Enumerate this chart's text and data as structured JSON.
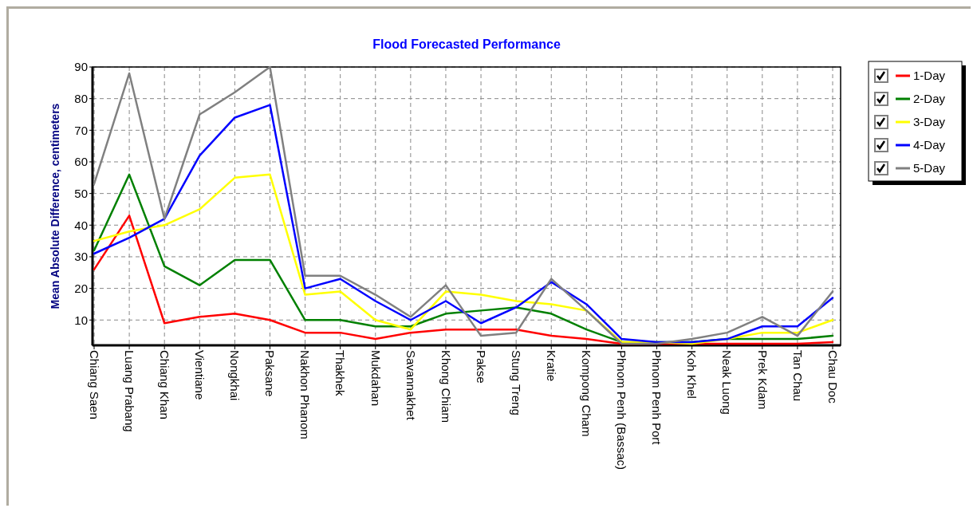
{
  "chart_data": {
    "type": "line",
    "title": "Flood Forecasted Performance",
    "ylabel": "Mean Absolute Difference, centimeters",
    "categories": [
      "Chiang Saen",
      "Luang Prabang",
      "Chiang Khan",
      "Vientiane",
      "Nongkhai",
      "Paksane",
      "Nakhon Phanom",
      "Thakhek",
      "Mukdahan",
      "Savannakhet",
      "Khong Chiam",
      "Pakse",
      "Stung Treng",
      "Kratie",
      "Kompong Cham",
      "Phnom Penh (Bassac)",
      "Phnom Penh Port",
      "Koh Khel",
      "Neak Luong",
      "Prek Kdam",
      "Tan Chau",
      "Chau Doc"
    ],
    "series": [
      {
        "name": "1-Day",
        "color": "#ff0000",
        "values": [
          26,
          43,
          9,
          11,
          12,
          10,
          6,
          6,
          4,
          6,
          7,
          7,
          7,
          5,
          4,
          2.5,
          2.5,
          2.5,
          2.5,
          2.5,
          2.5,
          3
        ]
      },
      {
        "name": "2-Day",
        "color": "#008000",
        "values": [
          32,
          56,
          27,
          21,
          29,
          29,
          10,
          10,
          8,
          8,
          12,
          13,
          14,
          12,
          7,
          3,
          3,
          3,
          4,
          4,
          4,
          5
        ]
      },
      {
        "name": "3-Day",
        "color": "#ffff00",
        "values": [
          35,
          38,
          40,
          45,
          55,
          56,
          18,
          19,
          10,
          7,
          19,
          18,
          16,
          15,
          13,
          3,
          3,
          2.5,
          4,
          6,
          6,
          10
        ]
      },
      {
        "name": "4-Day",
        "color": "#0000ff",
        "values": [
          31,
          36,
          42,
          62,
          74,
          78,
          20,
          23,
          16,
          10,
          16,
          9,
          14,
          22,
          15,
          4,
          3,
          3,
          4,
          8,
          8,
          17
        ]
      },
      {
        "name": "5-Day",
        "color": "#808080",
        "values": [
          53,
          88,
          42,
          75,
          82,
          90,
          24,
          24,
          18,
          11,
          21,
          5,
          6,
          23,
          13,
          2.5,
          2.5,
          4,
          6,
          11,
          5,
          19
        ]
      }
    ],
    "ylim": [
      2,
      90
    ],
    "yticks": [
      10,
      20,
      30,
      40,
      50,
      60,
      70,
      80,
      90
    ],
    "grid": true,
    "legend": "top right",
    "line_style": "solid",
    "marker": "none"
  }
}
